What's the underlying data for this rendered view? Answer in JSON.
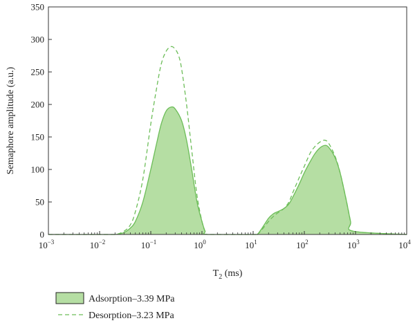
{
  "chart_data": {
    "type": "area",
    "xlabel": {
      "main": "T",
      "sub": "2",
      "unit": " (ms)"
    },
    "ylabel": "Semaphore amplitude (a.u.)",
    "x_scale": "log",
    "xlim": [
      0.001,
      10000
    ],
    "ylim": [
      0,
      350
    ],
    "x_ticks": [
      {
        "base": "10",
        "exp": "−3",
        "value": 0.001
      },
      {
        "base": "10",
        "exp": "−2",
        "value": 0.01
      },
      {
        "base": "10",
        "exp": "−1",
        "value": 0.1
      },
      {
        "base": "10",
        "exp": "0",
        "value": 1
      },
      {
        "base": "10",
        "exp": "1",
        "value": 10
      },
      {
        "base": "10",
        "exp": "2",
        "value": 100
      },
      {
        "base": "10",
        "exp": "3",
        "value": 1000
      },
      {
        "base": "10",
        "exp": "4",
        "value": 10000
      }
    ],
    "y_ticks": [
      "0",
      "50",
      "100",
      "150",
      "200",
      "250",
      "300",
      "350"
    ],
    "grid": false,
    "legend_position": "bottom-left",
    "colors": {
      "fill": "#b5dea3",
      "line": "#6cbd58"
    },
    "series": [
      {
        "name": "Adsorption–3.39 MPa",
        "style": "filled-solid",
        "x": [
          0.001,
          0.01,
          0.02,
          0.03,
          0.04,
          0.05,
          0.07,
          0.1,
          0.13,
          0.16,
          0.2,
          0.25,
          0.3,
          0.4,
          0.5,
          0.63,
          0.8,
          1.0,
          1.15,
          1.3,
          10,
          12,
          15,
          20,
          25,
          30,
          40,
          50,
          60,
          80,
          100,
          130,
          160,
          200,
          250,
          300,
          400,
          500,
          650,
          800,
          900,
          10000
        ],
        "y": [
          0,
          0,
          0,
          3,
          10,
          20,
          50,
          100,
          140,
          170,
          190,
          196,
          193,
          175,
          145,
          100,
          50,
          20,
          5,
          0,
          0,
          0,
          10,
          25,
          32,
          35,
          40,
          47,
          58,
          78,
          95,
          112,
          124,
          133,
          137,
          134,
          118,
          95,
          55,
          20,
          5,
          0
        ]
      },
      {
        "name": "Desorption–3.23 MPa",
        "style": "dashed",
        "x": [
          0.001,
          0.01,
          0.02,
          0.03,
          0.04,
          0.05,
          0.07,
          0.1,
          0.13,
          0.16,
          0.2,
          0.25,
          0.3,
          0.35,
          0.4,
          0.5,
          0.63,
          0.8,
          1.0,
          1.15,
          1.3,
          10,
          12,
          15,
          20,
          25,
          30,
          40,
          50,
          60,
          80,
          100,
          130,
          160,
          200,
          250,
          300,
          400,
          500,
          650,
          800,
          900,
          10000
        ],
        "y": [
          0,
          0,
          0,
          5,
          15,
          35,
          85,
          170,
          225,
          262,
          282,
          289,
          285,
          275,
          255,
          200,
          130,
          60,
          20,
          5,
          0,
          0,
          0,
          8,
          20,
          28,
          33,
          40,
          50,
          65,
          88,
          105,
          125,
          135,
          142,
          145,
          140,
          120,
          95,
          55,
          20,
          5,
          0
        ]
      }
    ]
  }
}
